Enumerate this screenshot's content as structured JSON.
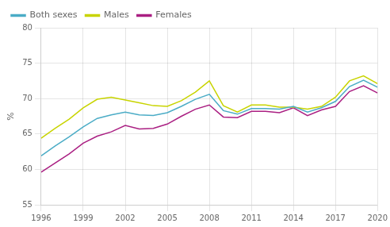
{
  "chart_data": {
    "type": "line",
    "x": [
      1996,
      1997,
      1998,
      1999,
      2000,
      2001,
      2002,
      2003,
      2004,
      2005,
      2006,
      2007,
      2008,
      2009,
      2010,
      2011,
      2012,
      2013,
      2014,
      2015,
      2016,
      2017,
      2018,
      2019,
      2020
    ],
    "series": [
      {
        "name": "Both sexes",
        "color": "#4bacc6",
        "values": [
          61.9,
          63.3,
          64.6,
          66.0,
          67.2,
          67.7,
          68.1,
          67.7,
          67.6,
          68.0,
          68.9,
          69.9,
          70.6,
          68.3,
          67.8,
          68.6,
          68.6,
          68.5,
          68.9,
          68.1,
          68.7,
          69.6,
          71.7,
          72.6,
          71.6
        ]
      },
      {
        "name": "Males",
        "color": "#c8d400",
        "values": [
          64.4,
          65.8,
          67.1,
          68.7,
          69.9,
          70.2,
          69.8,
          69.4,
          69.0,
          68.9,
          69.7,
          70.9,
          72.5,
          69.0,
          68.1,
          69.1,
          69.1,
          68.8,
          68.8,
          68.5,
          68.9,
          70.2,
          72.5,
          73.2,
          72.1
        ]
      },
      {
        "name": "Females",
        "color": "#aa1f82",
        "values": [
          59.6,
          60.9,
          62.2,
          63.7,
          64.7,
          65.3,
          66.2,
          65.7,
          65.8,
          66.4,
          67.5,
          68.5,
          69.1,
          67.4,
          67.3,
          68.2,
          68.2,
          68.0,
          68.7,
          67.6,
          68.4,
          68.9,
          71.0,
          71.8,
          70.8
        ]
      }
    ],
    "ylabel": "%",
    "xlim": [
      1996,
      2020
    ],
    "xticks": [
      1996,
      1999,
      2002,
      2005,
      2008,
      2011,
      2014,
      2017,
      2020
    ],
    "ylim": [
      55,
      80
    ],
    "yticks": [
      55,
      60,
      65,
      70,
      75,
      80
    ],
    "grid": true,
    "legend": "upper left"
  }
}
